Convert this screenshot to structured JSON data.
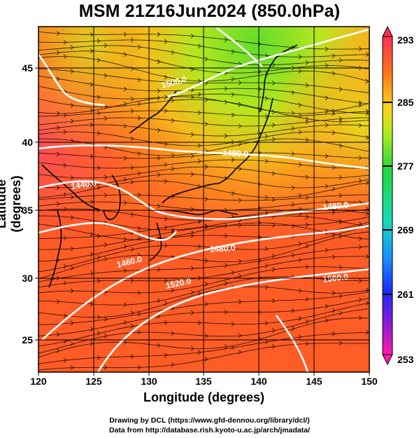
{
  "title": "MSM 21Z16Jun2024 (850.0hPa)",
  "x_axis": {
    "label": "Longitude (degrees)",
    "ticks": [
      "120",
      "125",
      "130",
      "135",
      "140",
      "145",
      "150"
    ]
  },
  "y_axis": {
    "label": "Latitude  (degrees)",
    "ticks": [
      "25",
      "30",
      "35",
      "40",
      "45"
    ]
  },
  "colorbar": {
    "ticks": [
      "293",
      "285",
      "277",
      "269",
      "261",
      "253"
    ],
    "colors": [
      "#ff3050",
      "#ff7a1a",
      "#ffd21a",
      "#9ee51e",
      "#1fd93b",
      "#18d9b8",
      "#1a8cff",
      "#1a2aff",
      "#b01ad9",
      "#ff1aa8"
    ]
  },
  "contour_labels": [
    "1440.0",
    "1480.0",
    "1460.0",
    "1480.0",
    "1520.0",
    "1480.0",
    "1500.0",
    "1560.0"
  ],
  "credits": {
    "line1": "Drawing by DCL (https://www.gfd-dennou.org/library/dcl/)",
    "line2": "Data from http://database.rish.kyoto-u.ac.jp/arch/jmadata/"
  }
}
